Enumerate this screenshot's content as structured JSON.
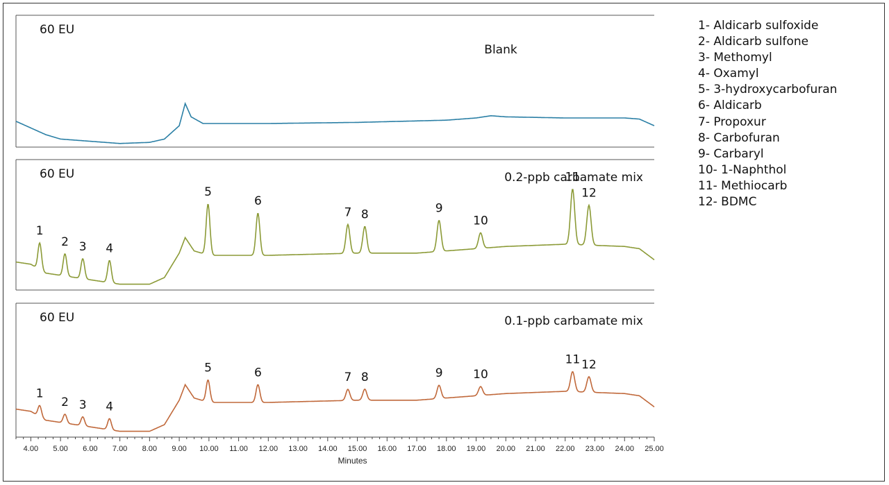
{
  "chart_data": {
    "type": "line",
    "xlabel": "Minutes",
    "xlim": [
      3.5,
      25.0
    ],
    "x_ticks": [
      "4.00",
      "5.00",
      "6.00",
      "7.00",
      "8.00",
      "9.00",
      "10.00",
      "11.00",
      "12.00",
      "13.00",
      "14.00",
      "15.00",
      "16.00",
      "17.00",
      "18.00",
      "19.00",
      "20.00",
      "21.00",
      "22.00",
      "23.00",
      "24.00",
      "25.00"
    ],
    "x_tick_values": [
      4,
      5,
      6,
      7,
      8,
      9,
      10,
      11,
      12,
      13,
      14,
      15,
      16,
      17,
      18,
      19,
      20,
      21,
      22,
      23,
      24,
      25
    ],
    "panels": [
      {
        "name": "Blank",
        "scale_label": "60 EU",
        "color": "#2a7fa5",
        "baseline": [
          [
            3.5,
            11
          ],
          [
            4.0,
            8
          ],
          [
            4.5,
            5
          ],
          [
            5.0,
            3
          ],
          [
            6.0,
            2
          ],
          [
            7.0,
            1
          ],
          [
            8.0,
            1.5
          ],
          [
            8.5,
            3
          ],
          [
            9.0,
            9
          ],
          [
            9.2,
            19
          ],
          [
            9.4,
            13
          ],
          [
            9.8,
            10
          ],
          [
            10,
            10
          ],
          [
            12,
            10
          ],
          [
            15,
            10.5
          ],
          [
            18,
            11.5
          ],
          [
            19,
            12.5
          ],
          [
            19.5,
            13.5
          ],
          [
            20,
            13
          ],
          [
            22,
            12.5
          ],
          [
            24,
            12.5
          ],
          [
            24.5,
            12
          ],
          [
            25,
            9
          ]
        ],
        "peaks": []
      },
      {
        "name": "0.2-ppb carbamate mix",
        "scale_label": "60 EU",
        "color": "#8b9a36",
        "baseline": [
          [
            3.5,
            12
          ],
          [
            4.0,
            11
          ],
          [
            4.5,
            7
          ],
          [
            5,
            6
          ],
          [
            6,
            4
          ],
          [
            7,
            2
          ],
          [
            8,
            2
          ],
          [
            8.5,
            5
          ],
          [
            9.0,
            16
          ],
          [
            9.2,
            23
          ],
          [
            9.5,
            17
          ],
          [
            10,
            15
          ],
          [
            12,
            15
          ],
          [
            15,
            16
          ],
          [
            17,
            16
          ],
          [
            18,
            17
          ],
          [
            19,
            18
          ],
          [
            20,
            19
          ],
          [
            22,
            20
          ],
          [
            24,
            19
          ],
          [
            24.5,
            18
          ],
          [
            25,
            13
          ]
        ],
        "peaks": [
          {
            "label": "1",
            "rt": 4.3,
            "height": 12
          },
          {
            "label": "2",
            "rt": 5.15,
            "height": 10
          },
          {
            "label": "3",
            "rt": 5.75,
            "height": 9
          },
          {
            "label": "4",
            "rt": 6.65,
            "height": 10
          },
          {
            "label": "5",
            "rt": 9.97,
            "height": 23
          },
          {
            "label": "6",
            "rt": 11.65,
            "height": 19
          },
          {
            "label": "7",
            "rt": 14.68,
            "height": 13
          },
          {
            "label": "8",
            "rt": 15.25,
            "height": 12
          },
          {
            "label": "9",
            "rt": 17.75,
            "height": 14
          },
          {
            "label": "10",
            "rt": 19.15,
            "height": 7
          },
          {
            "label": "11",
            "rt": 22.25,
            "height": 25
          },
          {
            "label": "12",
            "rt": 22.8,
            "height": 18
          }
        ]
      },
      {
        "name": "0.1-ppb carbamate mix",
        "scale_label": "60 EU",
        "color": "#c0683a",
        "baseline": [
          [
            3.5,
            12
          ],
          [
            4.0,
            11
          ],
          [
            4.5,
            7
          ],
          [
            5,
            6
          ],
          [
            6,
            4
          ],
          [
            7,
            2
          ],
          [
            8,
            2
          ],
          [
            8.5,
            5
          ],
          [
            9.0,
            16
          ],
          [
            9.2,
            23
          ],
          [
            9.5,
            17
          ],
          [
            10,
            15
          ],
          [
            12,
            15
          ],
          [
            15,
            16
          ],
          [
            17,
            16
          ],
          [
            18,
            17
          ],
          [
            19,
            18
          ],
          [
            20,
            19
          ],
          [
            22,
            20
          ],
          [
            24,
            19
          ],
          [
            24.5,
            18
          ],
          [
            25,
            13
          ]
        ],
        "peaks": [
          {
            "label": "1",
            "rt": 4.3,
            "height": 5
          },
          {
            "label": "2",
            "rt": 5.15,
            "height": 4
          },
          {
            "label": "3",
            "rt": 5.75,
            "height": 4
          },
          {
            "label": "4",
            "rt": 6.65,
            "height": 5
          },
          {
            "label": "5",
            "rt": 9.97,
            "height": 10
          },
          {
            "label": "6",
            "rt": 11.65,
            "height": 8
          },
          {
            "label": "7",
            "rt": 14.68,
            "height": 5
          },
          {
            "label": "8",
            "rt": 15.25,
            "height": 5
          },
          {
            "label": "9",
            "rt": 17.75,
            "height": 6
          },
          {
            "label": "10",
            "rt": 19.15,
            "height": 4
          },
          {
            "label": "11",
            "rt": 22.25,
            "height": 9
          },
          {
            "label": "12",
            "rt": 22.8,
            "height": 7
          }
        ]
      }
    ],
    "legend": [
      "1- Aldicarb sulfoxide",
      "2- Aldicarb sulfone",
      "3- Methomyl",
      "4- Oxamyl",
      "5- 3-hydroxycarbofuran",
      "6- Aldicarb",
      "7- Propoxur",
      "8- Carbofuran",
      "9- Carbaryl",
      "10- 1-Naphthol",
      "11- Methiocarb",
      "12- BDMC"
    ]
  }
}
